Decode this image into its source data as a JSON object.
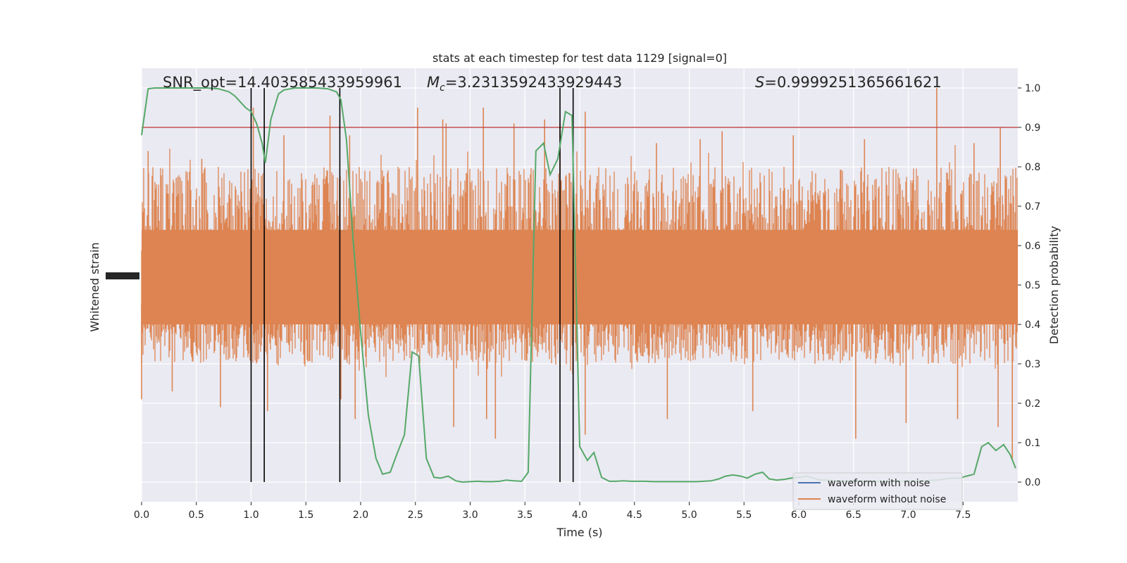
{
  "chart_data": {
    "type": "line",
    "title": "stats at each timestep for test data 1129 [signal=0]",
    "xlabel": "Time (s)",
    "ylabel_left": "Whitened strain",
    "ylabel_right": "Detection probability",
    "xlim": [
      0.0,
      8.0
    ],
    "ylim_right": [
      -0.05,
      1.05
    ],
    "x_ticks": [
      "0.0",
      "0.5",
      "1.0",
      "1.5",
      "2.0",
      "2.5",
      "3.0",
      "3.5",
      "4.0",
      "4.5",
      "5.0",
      "5.5",
      "6.0",
      "6.5",
      "7.0",
      "7.5"
    ],
    "x_tick_values": [
      0.0,
      0.5,
      1.0,
      1.5,
      2.0,
      2.5,
      3.0,
      3.5,
      4.0,
      4.5,
      5.0,
      5.5,
      6.0,
      6.5,
      7.0,
      7.5
    ],
    "y_right_ticks": [
      "0.0",
      "0.1",
      "0.2",
      "0.3",
      "0.4",
      "0.5",
      "0.6",
      "0.7",
      "0.8",
      "0.9",
      "1.0"
    ],
    "y_right_tick_values": [
      0.0,
      0.1,
      0.2,
      0.3,
      0.4,
      0.5,
      0.6,
      0.7,
      0.8,
      0.9,
      1.0
    ],
    "annotations": {
      "snr_text": "SNR_opt=14.403585433959961",
      "mc_label": "M",
      "mc_sub": "c",
      "mc_value": "=3.2313592433929443",
      "s_label": "S",
      "s_value": "=0.9999251365661621"
    },
    "threshold": 0.9,
    "vertical_lines": [
      1.0,
      1.12,
      1.81,
      3.82,
      3.94
    ],
    "series": [
      {
        "name": "waveform with noise",
        "color": "#4c72b0"
      },
      {
        "name": "waveform without noise",
        "color": "#dd8452"
      }
    ],
    "noise_envelope": {
      "upper_prob_typical": 0.8,
      "lower_prob_typical": 0.3,
      "spikes_upper": [
        [
          0.06,
          0.84
        ],
        [
          0.55,
          0.82
        ],
        [
          1.02,
          0.95
        ],
        [
          1.3,
          0.88
        ],
        [
          1.72,
          0.93
        ],
        [
          1.9,
          0.88
        ],
        [
          2.52,
          0.95
        ],
        [
          2.75,
          0.92
        ],
        [
          2.78,
          0.91
        ],
        [
          3.12,
          0.95
        ],
        [
          3.4,
          0.91
        ],
        [
          3.68,
          0.92
        ],
        [
          3.82,
          0.91
        ],
        [
          4.05,
          0.94
        ],
        [
          4.7,
          0.86
        ],
        [
          5.1,
          0.87
        ],
        [
          5.3,
          0.89
        ],
        [
          5.95,
          0.88
        ],
        [
          6.6,
          0.87
        ],
        [
          7.26,
          1.0
        ],
        [
          7.6,
          0.86
        ],
        [
          7.84,
          0.9
        ]
      ],
      "spikes_lower": [
        [
          0.0,
          0.21
        ],
        [
          0.28,
          0.23
        ],
        [
          0.72,
          0.19
        ],
        [
          1.15,
          0.18
        ],
        [
          1.82,
          0.21
        ],
        [
          1.95,
          0.16
        ],
        [
          2.85,
          0.14
        ],
        [
          3.15,
          0.16
        ],
        [
          3.23,
          0.11
        ],
        [
          4.05,
          0.12
        ],
        [
          4.8,
          0.16
        ],
        [
          5.58,
          0.18
        ],
        [
          6.52,
          0.11
        ],
        [
          6.98,
          0.15
        ],
        [
          7.45,
          0.16
        ],
        [
          7.82,
          0.14
        ],
        [
          7.95,
          0.06
        ]
      ]
    },
    "probability": {
      "color": "#55a868",
      "x": [
        0.0,
        0.06,
        0.12,
        0.2,
        0.3,
        0.4,
        0.5,
        0.6,
        0.7,
        0.8,
        0.85,
        0.9,
        0.95,
        1.0,
        1.05,
        1.1,
        1.13,
        1.18,
        1.25,
        1.3,
        1.4,
        1.5,
        1.6,
        1.7,
        1.78,
        1.82,
        1.87,
        1.93,
        2.0,
        2.07,
        2.14,
        2.2,
        2.27,
        2.33,
        2.4,
        2.47,
        2.53,
        2.6,
        2.67,
        2.73,
        2.8,
        2.87,
        2.93,
        3.0,
        3.07,
        3.13,
        3.2,
        3.27,
        3.33,
        3.4,
        3.47,
        3.53,
        3.6,
        3.67,
        3.73,
        3.8,
        3.87,
        3.93,
        4.0,
        4.07,
        4.13,
        4.2,
        4.27,
        4.33,
        4.4,
        4.47,
        4.53,
        4.6,
        4.67,
        4.73,
        4.8,
        4.87,
        4.93,
        5.0,
        5.07,
        5.13,
        5.2,
        5.27,
        5.33,
        5.4,
        5.47,
        5.53,
        5.6,
        5.67,
        5.73,
        5.8,
        5.87,
        5.93,
        6.0,
        6.07,
        6.13,
        6.2,
        6.27,
        6.33,
        6.4,
        6.47,
        6.53,
        6.6,
        6.67,
        6.73,
        6.8,
        6.87,
        6.93,
        7.0,
        7.07,
        7.13,
        7.2,
        7.27,
        7.33,
        7.4,
        7.47,
        7.53,
        7.6,
        7.67,
        7.73,
        7.8,
        7.87,
        7.93,
        7.98
      ],
      "y": [
        0.88,
        0.998,
        1.0,
        1.0,
        1.0,
        1.0,
        1.0,
        1.0,
        0.998,
        0.99,
        0.98,
        0.965,
        0.95,
        0.94,
        0.91,
        0.86,
        0.81,
        0.92,
        0.985,
        0.995,
        1.0,
        1.0,
        1.0,
        0.998,
        0.99,
        0.97,
        0.87,
        0.62,
        0.38,
        0.17,
        0.06,
        0.02,
        0.025,
        0.07,
        0.12,
        0.33,
        0.32,
        0.06,
        0.012,
        0.01,
        0.015,
        0.003,
        0.0,
        0.001,
        0.002,
        0.001,
        0.001,
        0.002,
        0.005,
        0.003,
        0.002,
        0.025,
        0.84,
        0.86,
        0.78,
        0.82,
        0.94,
        0.93,
        0.09,
        0.055,
        0.075,
        0.012,
        0.002,
        0.002,
        0.003,
        0.002,
        0.002,
        0.002,
        0.001,
        0.001,
        0.001,
        0.001,
        0.001,
        0.001,
        0.001,
        0.002,
        0.003,
        0.008,
        0.015,
        0.018,
        0.015,
        0.01,
        0.02,
        0.025,
        0.008,
        0.005,
        0.007,
        0.01,
        0.012,
        0.015,
        0.01,
        0.005,
        0.005,
        0.003,
        0.003,
        0.003,
        0.003,
        0.003,
        0.002,
        0.002,
        0.002,
        0.002,
        0.002,
        0.003,
        0.003,
        0.003,
        0.004,
        0.005,
        0.008,
        0.01,
        0.01,
        0.015,
        0.02,
        0.09,
        0.1,
        0.08,
        0.095,
        0.07,
        0.035
      ]
    },
    "legend_position": "lower-right",
    "grid": true
  }
}
